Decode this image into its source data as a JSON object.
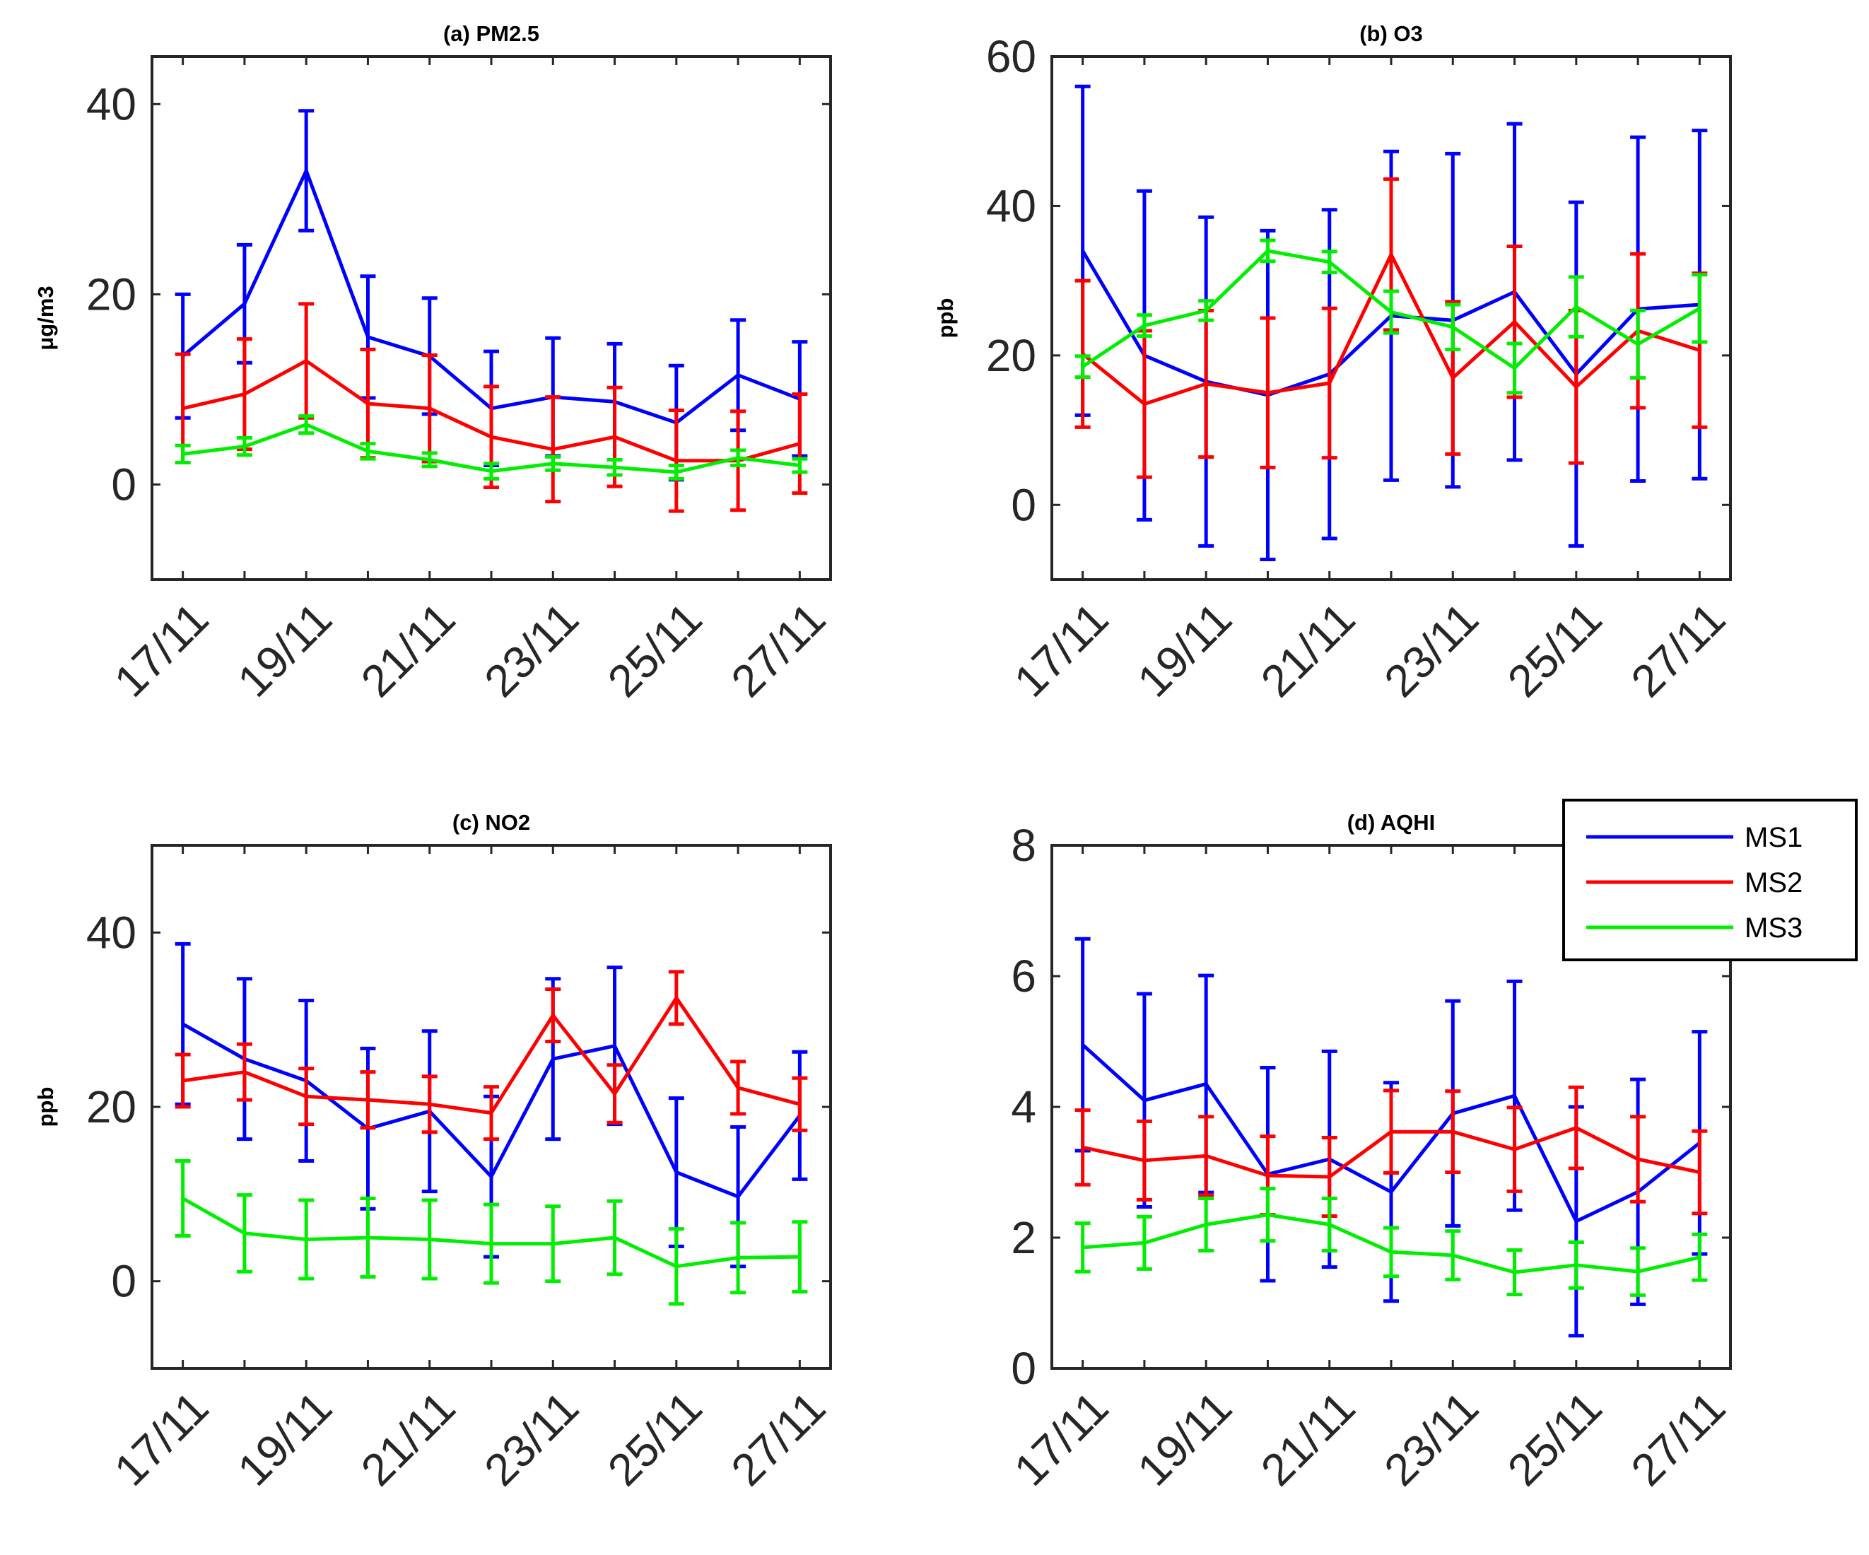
{
  "chart_data": [
    {
      "id": "a",
      "type": "line",
      "title": "(a)  PM2.5",
      "ylabel": "μg/m3",
      "xlabel": "",
      "ylim": [
        -10,
        45
      ],
      "yticks": [
        0,
        20,
        40
      ],
      "x": [
        17,
        18,
        19,
        20,
        21,
        22,
        23,
        24,
        25,
        26,
        27
      ],
      "xtick_values": [
        17,
        19,
        21,
        23,
        25,
        27
      ],
      "xtick_labels": [
        "17/11",
        "19/11",
        "21/11",
        "23/11",
        "25/11",
        "27/11"
      ],
      "series": [
        {
          "name": "MS1",
          "color": "#0000ff",
          "values": [
            13.5,
            19,
            33,
            15.5,
            13.5,
            8,
            9.2,
            8.7,
            6.5,
            11.5,
            9
          ],
          "errors": [
            6.5,
            6.2,
            6.3,
            6.4,
            6.1,
            6,
            6.2,
            6.1,
            6,
            5.8,
            6
          ]
        },
        {
          "name": "MS2",
          "color": "#ff0000",
          "values": [
            8,
            9.5,
            13,
            8.5,
            8,
            5,
            3.7,
            5,
            2.5,
            2.5,
            4.3
          ],
          "errors": [
            5.7,
            5.8,
            6,
            5.7,
            5.6,
            5.3,
            5.5,
            5.2,
            5.3,
            5.2,
            5.2
          ]
        },
        {
          "name": "MS3",
          "color": "#00ee00",
          "values": [
            3.2,
            4,
            6.3,
            3.5,
            2.6,
            1.4,
            2.2,
            1.8,
            1.3,
            2.8,
            2
          ],
          "errors": [
            0.9,
            0.9,
            0.9,
            0.8,
            0.7,
            0.8,
            0.7,
            0.8,
            0.7,
            0.8,
            0.7
          ]
        }
      ]
    },
    {
      "id": "b",
      "type": "line",
      "title": "(b)  O3",
      "ylabel": "ppb",
      "xlabel": "",
      "ylim": [
        -10,
        60
      ],
      "yticks": [
        0,
        20,
        40,
        60
      ],
      "x": [
        17,
        18,
        19,
        20,
        21,
        22,
        23,
        24,
        25,
        26,
        27
      ],
      "xtick_values": [
        17,
        19,
        21,
        23,
        25,
        27
      ],
      "xtick_labels": [
        "17/11",
        "19/11",
        "21/11",
        "23/11",
        "25/11",
        "27/11"
      ],
      "series": [
        {
          "name": "MS1",
          "color": "#0000ff",
          "values": [
            34,
            20,
            16.5,
            14.7,
            17.5,
            25.3,
            24.7,
            28.5,
            17.5,
            26.2,
            26.8
          ],
          "errors": [
            22,
            22,
            22,
            22,
            22,
            22,
            22.3,
            22.5,
            23,
            23,
            23.3
          ]
        },
        {
          "name": "MS2",
          "color": "#ff0000",
          "values": [
            20.2,
            13.5,
            16.2,
            15,
            16.3,
            33.5,
            17,
            24.5,
            15.8,
            23.3,
            20.7
          ],
          "errors": [
            9.8,
            9.8,
            9.8,
            10,
            10,
            10.1,
            10.2,
            10.1,
            10.2,
            10.3,
            10.3
          ]
        },
        {
          "name": "MS3",
          "color": "#00ee00",
          "values": [
            18.5,
            24,
            26,
            34,
            32.5,
            25.8,
            23.8,
            18.3,
            26.5,
            21.5,
            26.3
          ],
          "errors": [
            1.4,
            1.4,
            1.3,
            1.4,
            1.4,
            2.8,
            3,
            3.3,
            4,
            4.5,
            4.5
          ]
        }
      ]
    },
    {
      "id": "c",
      "type": "line",
      "title": "(c)  NO2",
      "ylabel": "ppb",
      "xlabel": "",
      "ylim": [
        -10,
        50
      ],
      "yticks": [
        0,
        20,
        40
      ],
      "x": [
        17,
        18,
        19,
        20,
        21,
        22,
        23,
        24,
        25,
        26,
        27
      ],
      "xtick_values": [
        17,
        19,
        21,
        23,
        25,
        27
      ],
      "xtick_labels": [
        "17/11",
        "19/11",
        "21/11",
        "23/11",
        "25/11",
        "27/11"
      ],
      "series": [
        {
          "name": "MS1",
          "color": "#0000ff",
          "values": [
            29.5,
            25.5,
            23,
            17.5,
            19.5,
            12,
            25.5,
            27,
            12.5,
            9.7,
            19
          ],
          "errors": [
            9.2,
            9.2,
            9.2,
            9.2,
            9.2,
            9.2,
            9.2,
            9,
            8.5,
            8,
            7.3
          ]
        },
        {
          "name": "MS2",
          "color": "#ff0000",
          "values": [
            23,
            24,
            21.2,
            20.8,
            20.3,
            19.3,
            30.5,
            21.5,
            32.5,
            22.2,
            20.3
          ],
          "errors": [
            3,
            3.2,
            3.2,
            3.2,
            3.2,
            3,
            3,
            3.3,
            3,
            3,
            3
          ]
        },
        {
          "name": "MS3",
          "color": "#00ee00",
          "values": [
            9.5,
            5.5,
            4.8,
            5,
            4.8,
            4.3,
            4.3,
            5,
            1.7,
            2.7,
            2.8
          ],
          "errors": [
            4.3,
            4.4,
            4.5,
            4.5,
            4.5,
            4.5,
            4.3,
            4.2,
            4.3,
            4,
            4
          ]
        }
      ]
    },
    {
      "id": "d",
      "type": "line",
      "title": "(d)  AQHI",
      "ylabel": "",
      "xlabel": "",
      "ylim": [
        0,
        8
      ],
      "yticks": [
        0,
        2,
        4,
        6,
        8
      ],
      "x": [
        17,
        18,
        19,
        20,
        21,
        22,
        23,
        24,
        25,
        26,
        27
      ],
      "xtick_values": [
        17,
        19,
        21,
        23,
        25,
        27
      ],
      "xtick_labels": [
        "17/11",
        "19/11",
        "21/11",
        "23/11",
        "25/11",
        "27/11"
      ],
      "series": [
        {
          "name": "MS1",
          "color": "#0000ff",
          "values": [
            4.95,
            4.1,
            4.35,
            2.97,
            3.2,
            2.7,
            3.9,
            4.17,
            2.25,
            2.7,
            3.45
          ],
          "errors": [
            1.62,
            1.63,
            1.66,
            1.63,
            1.65,
            1.67,
            1.72,
            1.75,
            1.75,
            1.72,
            1.7
          ]
        },
        {
          "name": "MS2",
          "color": "#ff0000",
          "values": [
            3.38,
            3.18,
            3.25,
            2.95,
            2.93,
            3.62,
            3.62,
            3.35,
            3.68,
            3.2,
            3
          ]
        },
        {
          "name": "MS3",
          "color": "#00ee00",
          "values": [
            1.85,
            1.92,
            2.2,
            2.35,
            2.2,
            1.78,
            1.73,
            1.47,
            1.58,
            1.48,
            1.7
          ]
        }
      ],
      "legend": {
        "placement": "top-right",
        "entries": [
          "MS1",
          "MS2",
          "MS3"
        ]
      }
    }
  ],
  "aqhi_ms2_errors": [
    0.57,
    0.6,
    0.6,
    0.6,
    0.6,
    0.63,
    0.62,
    0.64,
    0.62,
    0.65,
    0.63
  ],
  "aqhi_ms3_errors": [
    0.37,
    0.4,
    0.4,
    0.4,
    0.4,
    0.37,
    0.37,
    0.34,
    0.35,
    0.36,
    0.35
  ]
}
